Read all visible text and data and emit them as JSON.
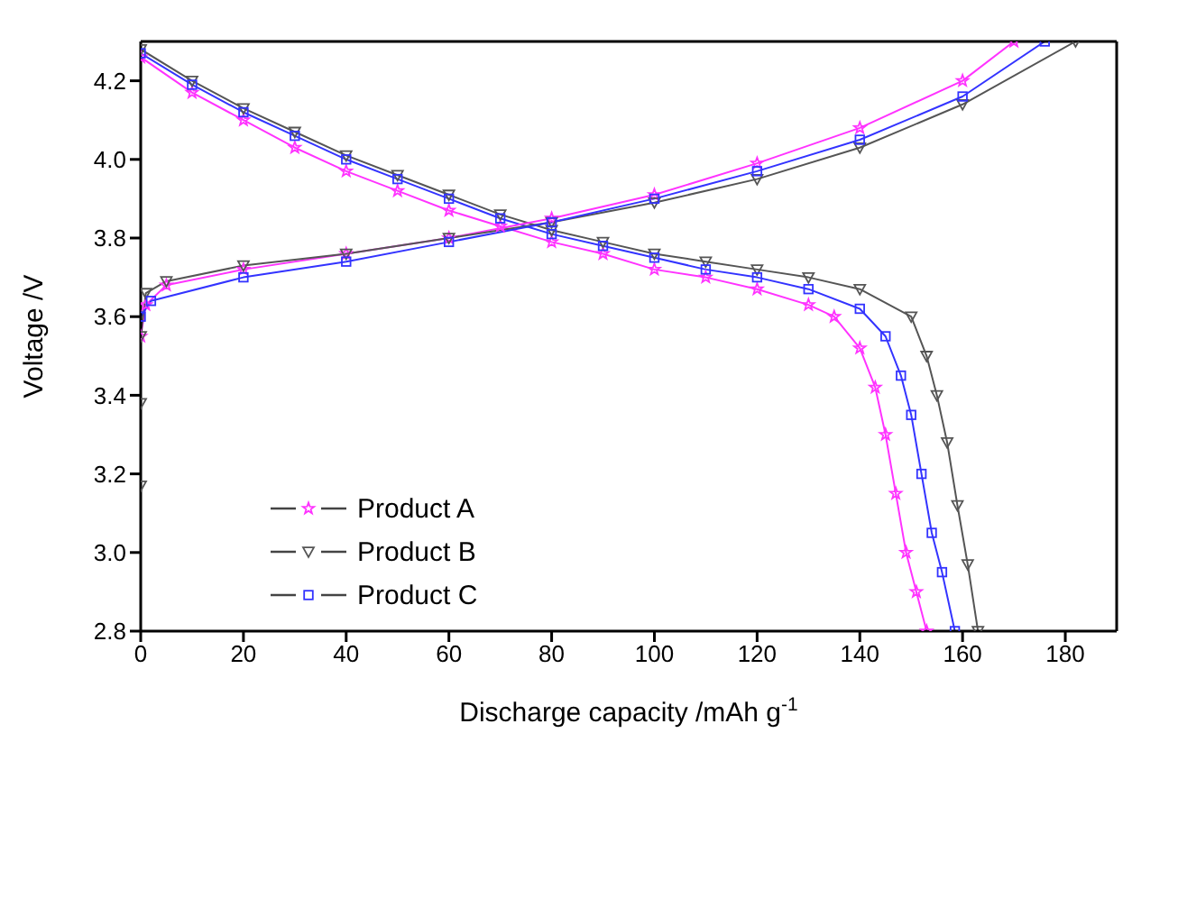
{
  "chart_data": {
    "type": "line",
    "xlabel": "Discharge capacity /mAh g$^{-1}$",
    "ylabel": "Voltage /V",
    "xlim": [
      0,
      190
    ],
    "xticks": [
      0,
      20,
      40,
      60,
      80,
      100,
      120,
      140,
      160,
      180
    ],
    "ylim": [
      2.8,
      4.3
    ],
    "yticks": [
      2.8,
      {
        "value": 3,
        "label": "3.0"
      },
      3.2,
      3.4,
      3.6,
      3.8,
      {
        "value": 4,
        "label": "4.0"
      },
      4.2
    ],
    "legend": "bottom left",
    "grid": false,
    "line_style": "solid",
    "series": [
      {
        "name": "Product A",
        "color": "#ff33ff",
        "marker": "star",
        "x": [
          0,
          10,
          20,
          30,
          40,
          50,
          60,
          70,
          80,
          90,
          100,
          110,
          120,
          130,
          135,
          140,
          143,
          145,
          147,
          149,
          151,
          153
        ],
        "values": [
          4.26,
          4.17,
          4.1,
          4.03,
          3.97,
          3.92,
          3.87,
          3.83,
          3.79,
          3.76,
          3.72,
          3.7,
          3.67,
          3.63,
          3.6,
          3.52,
          3.42,
          3.3,
          3.15,
          3.0,
          2.9,
          2.8
        ]
      },
      {
        "name": "Product B",
        "color": "#555555",
        "marker": "triangle",
        "x": [
          0,
          10,
          20,
          30,
          40,
          50,
          60,
          70,
          80,
          90,
          100,
          110,
          120,
          130,
          140,
          150,
          153,
          155,
          157,
          159,
          161,
          163
        ],
        "values": [
          4.28,
          4.2,
          4.13,
          4.07,
          4.01,
          3.96,
          3.91,
          3.86,
          3.82,
          3.79,
          3.76,
          3.74,
          3.72,
          3.7,
          3.67,
          3.6,
          3.5,
          3.4,
          3.28,
          3.12,
          2.97,
          2.8
        ]
      },
      {
        "name": "Product C",
        "color": "#3333ff",
        "marker": "square",
        "x": [
          0,
          10,
          20,
          30,
          40,
          50,
          60,
          70,
          80,
          90,
          100,
          110,
          120,
          130,
          140,
          145,
          148,
          150,
          152,
          154,
          156,
          158.5
        ],
        "values": [
          4.27,
          4.19,
          4.12,
          4.06,
          4.0,
          3.95,
          3.9,
          3.85,
          3.81,
          3.78,
          3.75,
          3.72,
          3.7,
          3.67,
          3.62,
          3.55,
          3.45,
          3.35,
          3.2,
          3.05,
          2.95,
          2.8
        ]
      },
      {
        "color": "#ff33ff",
        "marker": "star",
        "x": [
          0,
          1,
          5,
          20,
          40,
          60,
          80,
          100,
          120,
          140,
          160,
          170
        ],
        "values": [
          3.55,
          3.63,
          3.68,
          3.72,
          3.76,
          3.8,
          3.85,
          3.91,
          3.99,
          4.08,
          4.2,
          4.3
        ]
      },
      {
        "color": "#555555",
        "marker": "triangle",
        "x": [
          0,
          0,
          0,
          1,
          5,
          20,
          40,
          60,
          80,
          100,
          120,
          140,
          160,
          182
        ],
        "values": [
          3.17,
          3.38,
          3.55,
          3.66,
          3.69,
          3.73,
          3.76,
          3.8,
          3.84,
          3.89,
          3.95,
          4.03,
          4.14,
          4.3
        ]
      },
      {
        "color": "#3333ff",
        "marker": "square",
        "x": [
          0,
          2,
          20,
          40,
          60,
          80,
          100,
          120,
          140,
          160,
          176
        ],
        "values": [
          3.6,
          3.64,
          3.7,
          3.74,
          3.79,
          3.84,
          3.9,
          3.97,
          4.05,
          4.16,
          4.3
        ]
      }
    ]
  }
}
